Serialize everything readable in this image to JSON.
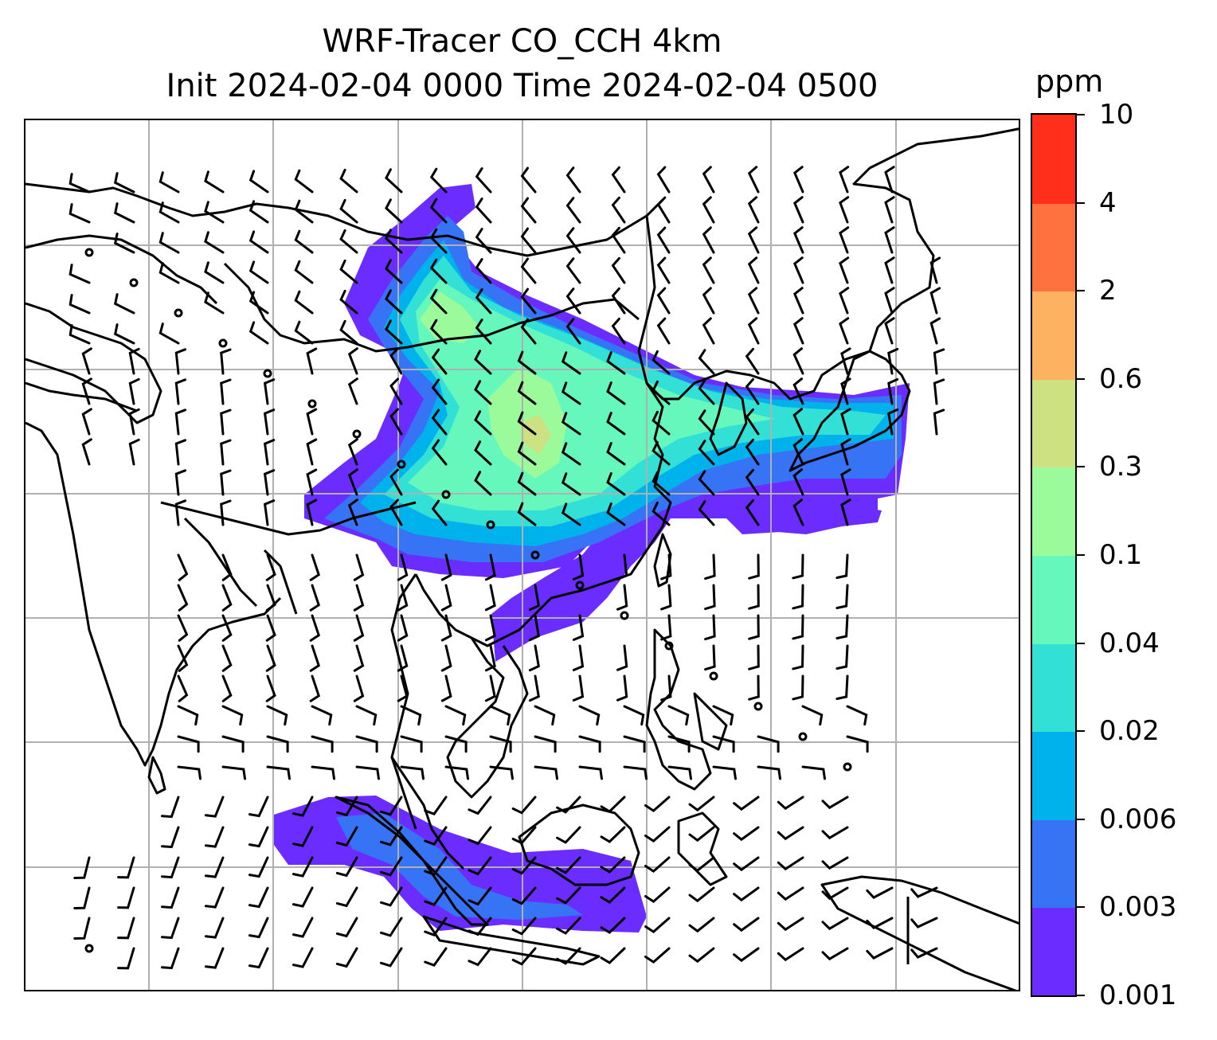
{
  "title": {
    "line1": "WRF-Tracer CO_CCH 4km",
    "line2": "Init 2024-02-04 0000 Time 2024-02-04 0500"
  },
  "colorbar": {
    "unit": "ppm",
    "levels": [
      "0.001",
      "0.003",
      "0.006",
      "0.02",
      "0.04",
      "0.1",
      "0.3",
      "0.6",
      "2",
      "4",
      "10"
    ],
    "colors": [
      "#6a2cff",
      "#3673f5",
      "#00b2ec",
      "#32e0d6",
      "#66f7bd",
      "#9bfb9b",
      "#cde183",
      "#fdb261",
      "#ff723f",
      "#ff2f1c"
    ]
  },
  "map": {
    "field": "CO_CCH tracer concentration (filled contours) with wind barbs",
    "gridlines": true,
    "coastlines": true,
    "wind_barbs": true
  }
}
